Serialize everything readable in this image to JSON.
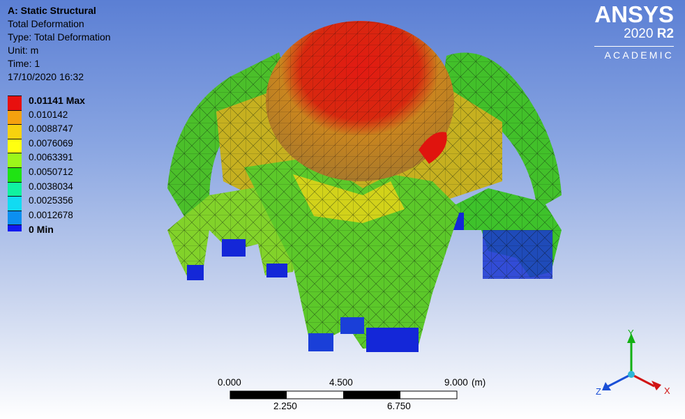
{
  "info": {
    "title": "A: Static Structural",
    "line1": "Total Deformation",
    "line2": "Type: Total Deformation",
    "line3": "Unit: m",
    "line4": "Time: 1",
    "line5": "17/10/2020 16:32"
  },
  "legend": [
    {
      "label": "0.01141 Max",
      "color": "#e8100e",
      "bold": true
    },
    {
      "label": "0.010142",
      "color": "#f5a10f"
    },
    {
      "label": "0.0088747",
      "color": "#f7d20e"
    },
    {
      "label": "0.0076069",
      "color": "#ffff10"
    },
    {
      "label": "0.0063391",
      "color": "#9bf61a"
    },
    {
      "label": "0.0050712",
      "color": "#1fe313"
    },
    {
      "label": "0.0038034",
      "color": "#10f2a0"
    },
    {
      "label": "0.0025356",
      "color": "#11dbf2"
    },
    {
      "label": "0.0012678",
      "color": "#0c8ff0"
    },
    {
      "label": "0 Min",
      "color": "#1219f0",
      "bold": true
    }
  ],
  "logo": {
    "name": "ANSYS",
    "version": "2020",
    "release": "R2",
    "edition": "ACADEMIC"
  },
  "scale_bar": {
    "top_labels": [
      "0.000",
      "4.500",
      "9.000"
    ],
    "unit": "(m)",
    "bottom_labels": [
      "2.250",
      "6.750"
    ]
  },
  "triad": {
    "x": "X",
    "y": "Y",
    "z": "Z",
    "x_color": "#d11414",
    "y_color": "#13b013",
    "z_color": "#1a4fd6"
  }
}
